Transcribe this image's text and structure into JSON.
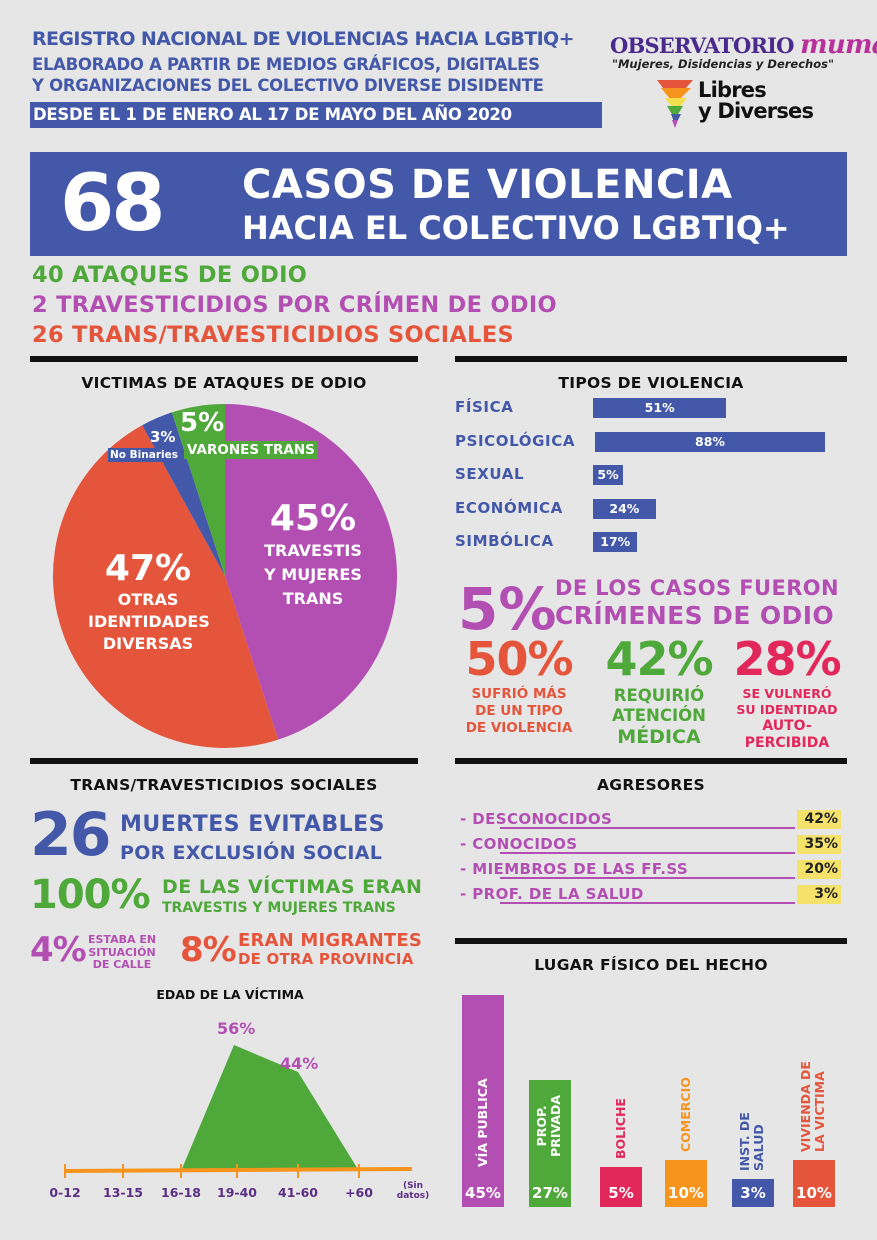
{
  "header": {
    "line1": "REGISTRO NACIONAL DE VIOLENCIAS HACIA LGBTIQ+",
    "line2": "ELABORADO A PARTIR DE MEDIOS GRÁFICOS, DIGITALES",
    "line3": "Y ORGANIZACIONES DEL COLECTIVO DIVERSE DISIDENTE",
    "line4": "DESDE EL 1 DE ENERO AL 17 DE MAYO DEL AÑO 2020"
  },
  "logos": {
    "observatorio": "OBSERVATORIO",
    "mumala": "mumala",
    "tagline": "\"Mujeres, Disidencias y Derechos\"",
    "libres_1": "Libres",
    "libres_2": "y Diverses"
  },
  "banner": {
    "number": "68",
    "title1": "CASOS DE VIOLENCIA",
    "title2": "HACIA EL COLECTIVO LGBTIQ+"
  },
  "summary": {
    "ataques": "40 ATAQUES DE ODIO",
    "travesticidios": "2 TRAVESTICIDIOS POR CRÍMEN DE ODIO",
    "sociales": "26 TRANS/TRAVESTICIDIOS SOCIALES"
  },
  "victimas": {
    "title": "VICTIMAS DE ATAQUES DE ODIO",
    "slices": [
      {
        "pct": "45%",
        "label": "TRAVESTIS Y MUJERES TRANS",
        "value": 45,
        "color": "#b34fb3"
      },
      {
        "pct": "47%",
        "label": "OTRAS IDENTIDADES DIVERSAS",
        "value": 47,
        "color": "#e4553c"
      },
      {
        "pct": "3%",
        "label": "No Binaries",
        "value": 3,
        "color": "#4358a8"
      },
      {
        "pct": "5%",
        "label": "VARONES TRANS",
        "value": 5,
        "color": "#4ea83a"
      }
    ],
    "label_45_a": "TRAVESTIS",
    "label_45_b": "Y MUJERES",
    "label_45_c": "TRANS",
    "label_47_a": "OTRAS",
    "label_47_b": "IDENTIDADES",
    "label_47_c": "DIVERSAS"
  },
  "tipos": {
    "title": "TIPOS DE VIOLENCIA",
    "items": [
      {
        "label": "FÍSICA",
        "pct": "51%",
        "value": 51
      },
      {
        "label": "PSICOLÓGICA",
        "pct": "88%",
        "value": 88
      },
      {
        "label": "SEXUAL",
        "pct": "5%",
        "value": 5
      },
      {
        "label": "ECONÓMICA",
        "pct": "24%",
        "value": 24
      },
      {
        "label": "SIMBÓLICA",
        "pct": "17%",
        "value": 17
      }
    ]
  },
  "crimenes": {
    "pct": "5%",
    "line1": "DE LOS CASOS FUERON",
    "line2": "CRÍMENES DE ODIO",
    "s1_pct": "50%",
    "s1_a": "SUFRIÓ MÁS",
    "s1_b": "DE UN TIPO",
    "s1_c": "DE VIOLENCIA",
    "s2_pct": "42%",
    "s2_a": "REQUIRIÓ",
    "s2_b": "ATENCIÓN",
    "s2_c": "MÉDICA",
    "s3_pct": "28%",
    "s3_a": "SE VULNERÓ",
    "s3_b": "SU IDENTIDAD",
    "s3_c": "AUTO-",
    "s3_d": "PERCIBIDA"
  },
  "trans": {
    "title": "TRANS/TRAVESTICIDIOS SOCIALES",
    "num": "26",
    "muertes1": "MUERTES EVITABLES",
    "muertes2": "POR EXCLUSIÓN SOCIAL",
    "pct100": "100%",
    "vict1": "DE LAS VÍCTIMAS ERAN",
    "vict2": "TRAVESTIS Y MUJERES TRANS",
    "p4": "4%",
    "calle1": "ESTABA EN",
    "calle2": "SITUACIÓN",
    "calle3": "DE CALLE",
    "p8": "8%",
    "migr1": "ERAN MIGRANTES",
    "migr2": "DE OTRA PROVINCIA"
  },
  "edad": {
    "title": "EDAD DE LA VÍCTIMA",
    "ticks": [
      "0-12",
      "13-15",
      "16-18",
      "19-40",
      "41-60",
      "+60",
      "(Sin",
      "datos)"
    ],
    "pct56": "56%",
    "pct44": "44%"
  },
  "chart_data": {
    "type": "area",
    "title": "EDAD DE LA VÍCTIMA",
    "categories": [
      "0-12",
      "13-15",
      "16-18",
      "19-40",
      "41-60",
      "+60",
      "(Sin datos)"
    ],
    "values": [
      0,
      0,
      0,
      56,
      44,
      0,
      0
    ]
  },
  "agresores": {
    "title": "AGRESORES",
    "items": [
      {
        "label": "- DESCONOCIDOS",
        "pct": "42%"
      },
      {
        "label": "- CONOCIDOS",
        "pct": "35%"
      },
      {
        "label": "- MIEMBROS DE LAS FF.SS",
        "pct": "20%"
      },
      {
        "label": "- PROF. DE LA SALUD",
        "pct": "3%"
      }
    ]
  },
  "lugar": {
    "title": "LUGAR FÍSICO DEL HECHO",
    "items": [
      {
        "label": "VÍA PUBLICA",
        "pct": "45%",
        "value": 45,
        "color": "#b34fb3",
        "label_color": "#ffffff"
      },
      {
        "label": "PROP. PRIVADA",
        "pct": "27%",
        "value": 27,
        "color": "#4ea83a",
        "label_color": "#ffffff"
      },
      {
        "label": "BOLICHE",
        "pct": "5%",
        "value": 5,
        "color": "#e2275b",
        "label_color": "#e2275b"
      },
      {
        "label": "COMERCIO",
        "pct": "10%",
        "value": 10,
        "color": "#f7941d",
        "label_color": "#f7941d"
      },
      {
        "label": "INST. DE SALUD",
        "pct": "3%",
        "value": 3,
        "color": "#4358a8",
        "label_color": "#4358a8"
      },
      {
        "label": "VIVIENDA DE LA VICTIMA",
        "pct": "10%",
        "value": 10,
        "color": "#e4553c",
        "label_color": "#e4553c"
      }
    ]
  }
}
